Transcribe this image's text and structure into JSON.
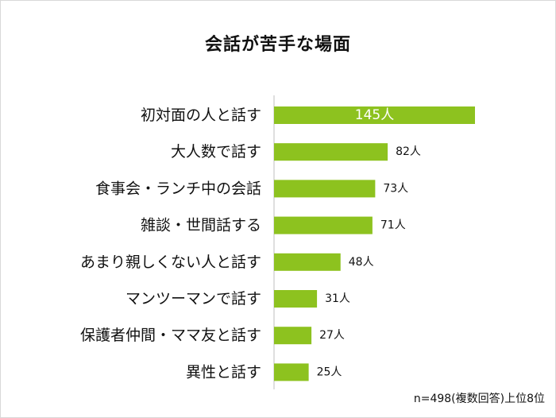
{
  "chart_data": {
    "type": "bar",
    "orientation": "horizontal",
    "title": "会話が苦手な場面",
    "categories": [
      "初対面の人と話す",
      "大人数で話す",
      "食事会・ランチ中の会話",
      "雑談・世間話する",
      "あまり親しくない人と話す",
      "マンツーマンで話す",
      "保護者仲間・ママ友と話す",
      "異性と話す"
    ],
    "values": [
      145,
      82,
      73,
      71,
      48,
      31,
      27,
      25
    ],
    "value_labels": [
      "145人",
      "82人",
      "73人",
      "71人",
      "48人",
      "31人",
      "27人",
      "25人"
    ],
    "xlim": [
      0,
      145
    ],
    "bar_color": "#8dc21f",
    "grid": false,
    "note": "n=498(複数回答)上位8位"
  }
}
